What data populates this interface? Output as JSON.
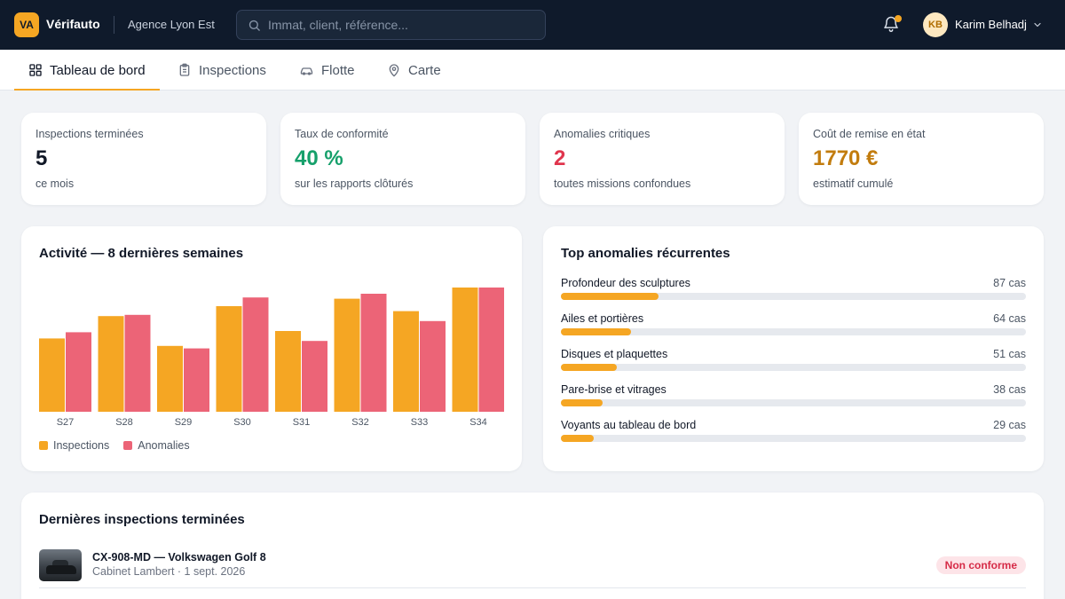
{
  "app": {
    "logo_text": "VA",
    "brand": "Vérifauto",
    "agency": "Agence Lyon Est",
    "search_placeholder": "Immat, client, référence...",
    "user_initials": "KB",
    "user_name": "Karim Belhadj"
  },
  "tabs": [
    {
      "label": "Tableau de bord",
      "icon": "grid-icon",
      "active": true
    },
    {
      "label": "Inspections",
      "icon": "clipboard-icon",
      "active": false
    },
    {
      "label": "Flotte",
      "icon": "car-icon",
      "active": false
    },
    {
      "label": "Carte",
      "icon": "map-pin-icon",
      "active": false
    }
  ],
  "kpis": [
    {
      "label": "Inspections terminées",
      "value": "5",
      "sub": "ce mois",
      "color": "#111827"
    },
    {
      "label": "Taux de conformité",
      "value": "40 %",
      "sub": "sur les rapports clôturés",
      "color": "#16a06b"
    },
    {
      "label": "Anomalies critiques",
      "value": "2",
      "sub": "toutes missions confondues",
      "color": "#e0354d"
    },
    {
      "label": "Coût de remise en état",
      "value": "1770 €",
      "sub": "estimatif cumulé",
      "color": "#c27c0e"
    }
  ],
  "activity": {
    "title": "Activité — 8 dernières semaines",
    "legend": [
      {
        "name": "Inspections",
        "color": "#f5a623"
      },
      {
        "name": "Anomalies",
        "color": "#ec6477"
      }
    ]
  },
  "chart_data": {
    "type": "bar",
    "categories": [
      "S27",
      "S28",
      "S29",
      "S30",
      "S31",
      "S32",
      "S33",
      "S34"
    ],
    "series": [
      {
        "name": "Inspections",
        "values": [
          59,
          77,
          53,
          85,
          65,
          91,
          81,
          100
        ]
      },
      {
        "name": "Anomalies",
        "values": [
          64,
          78,
          51,
          92,
          57,
          95,
          73,
          100
        ]
      }
    ],
    "ylim": [
      0,
      100
    ],
    "legend": "bottom-left",
    "grid": false
  },
  "anomalies": {
    "title": "Top anomalies récurrentes",
    "max": 87,
    "items": [
      {
        "name": "Profondeur des sculptures",
        "count": 87,
        "count_label": "87 cas",
        "fill": 0.21
      },
      {
        "name": "Ailes et portières",
        "count": 64,
        "count_label": "64 cas",
        "fill": 0.15
      },
      {
        "name": "Disques et plaquettes",
        "count": 51,
        "count_label": "51 cas",
        "fill": 0.12
      },
      {
        "name": "Pare-brise et vitrages",
        "count": 38,
        "count_label": "38 cas",
        "fill": 0.09
      },
      {
        "name": "Voyants au tableau de bord",
        "count": 29,
        "count_label": "29 cas",
        "fill": 0.07
      }
    ]
  },
  "recent": {
    "title": "Dernières inspections terminées",
    "items": [
      {
        "title": "CX-908-MD — Volkswagen Golf 8",
        "meta": "Cabinet Lambert · 1 sept. 2026",
        "status": "Non conforme"
      }
    ]
  },
  "colors": {
    "accent": "#f5a623",
    "topbar": "#0f1a2b",
    "anomaly": "#ec6477"
  }
}
